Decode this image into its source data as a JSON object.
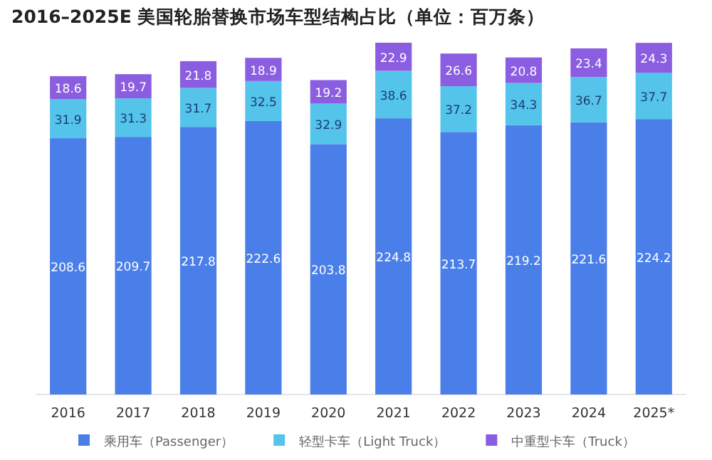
{
  "chart_data": {
    "type": "bar",
    "stacked": true,
    "title": "2016–2025E 美国轮胎替换市场车型结构占比（单位：百万条）",
    "categories": [
      "2016",
      "2017",
      "2018",
      "2019",
      "2020",
      "2021",
      "2022",
      "2023",
      "2024",
      "2025*"
    ],
    "series": [
      {
        "name": "乘用车（Passenger）",
        "color": "#4a7fe9",
        "values": [
          208.6,
          209.7,
          217.8,
          222.6,
          203.8,
          224.8,
          213.7,
          219.2,
          221.6,
          224.2
        ]
      },
      {
        "name": "轻型卡车（Light Truck）",
        "color": "#54c4ea",
        "values": [
          31.9,
          31.3,
          31.7,
          32.5,
          32.9,
          38.6,
          37.2,
          34.3,
          36.7,
          37.7
        ]
      },
      {
        "name": "中重型卡车（Truck）",
        "color": "#8a5de1",
        "values": [
          18.6,
          19.7,
          21.8,
          18.9,
          19.2,
          22.9,
          26.6,
          20.8,
          23.4,
          24.3
        ]
      }
    ],
    "data_labels": true,
    "legend": "bottom"
  }
}
